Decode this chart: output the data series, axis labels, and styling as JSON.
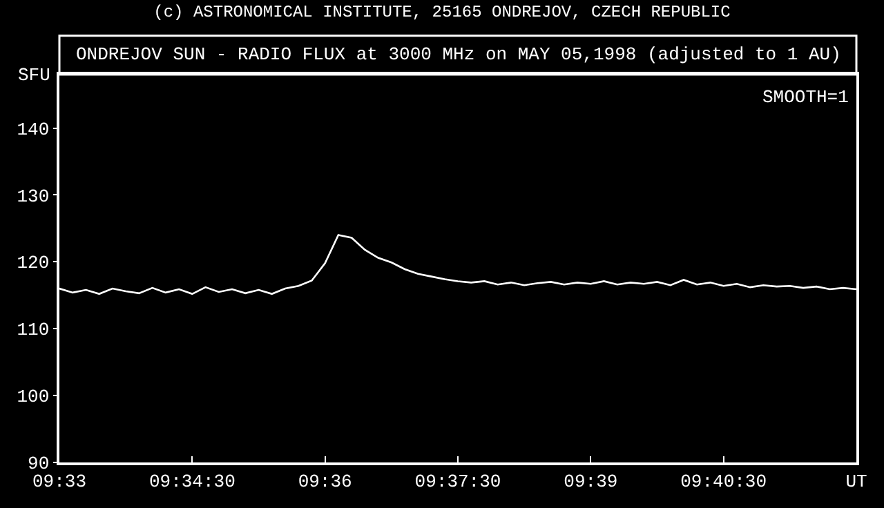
{
  "chart_data": {
    "type": "line",
    "title": "(c) ASTRONOMICAL INSTITUTE, 25165 ONDREJOV, CZECH REPUBLIC",
    "subtitle": "ONDREJOV SUN - RADIO FLUX at 3000 MHz on MAY 05,1998 (adjusted to 1 AU)",
    "ylabel": "SFU",
    "annotations": [
      "SMOOTH=1"
    ],
    "x": [
      9.55,
      9.5525,
      9.555,
      9.5575,
      9.56,
      9.5625,
      9.565,
      9.5675,
      9.57,
      9.5725,
      9.575,
      9.5775,
      9.58,
      9.5825,
      9.585,
      9.5875,
      9.59,
      9.5925,
      9.595,
      9.5975,
      9.6,
      9.6025,
      9.605,
      9.6075,
      9.61,
      9.6125,
      9.615,
      9.6175,
      9.62,
      9.6225,
      9.625,
      9.6275,
      9.63,
      9.6325,
      9.635,
      9.6375,
      9.64,
      9.6425,
      9.645,
      9.6475,
      9.65,
      9.6525,
      9.655,
      9.6575,
      9.66,
      9.6625,
      9.665,
      9.6675,
      9.67,
      9.6725,
      9.675,
      9.6775,
      9.68,
      9.6825,
      9.685,
      9.6875,
      9.69,
      9.6925,
      9.695,
      9.6975,
      9.7
    ],
    "series": [
      {
        "color": "#ffffff",
        "values": [
          116.0,
          115.4,
          115.8,
          115.2,
          116.0,
          115.6,
          115.3,
          116.1,
          115.4,
          115.9,
          115.2,
          116.2,
          115.5,
          115.9,
          115.3,
          115.8,
          115.2,
          116.0,
          116.4,
          117.2,
          119.8,
          124.0,
          123.6,
          121.8,
          120.6,
          119.9,
          118.9,
          118.2,
          117.8,
          117.4,
          117.1,
          116.9,
          117.1,
          116.6,
          116.9,
          116.5,
          116.8,
          117.0,
          116.6,
          116.9,
          116.7,
          117.1,
          116.6,
          116.9,
          116.7,
          117.0,
          116.5,
          117.3,
          116.6,
          116.9,
          116.4,
          116.7,
          116.2,
          116.5,
          116.3,
          116.4,
          116.1,
          116.3,
          115.9,
          116.1,
          115.9
        ]
      }
    ],
    "xlim": [
      9.55,
      9.7
    ],
    "xticks": [
      {
        "value": 9.55,
        "label": "09:33"
      },
      {
        "value": 9.575,
        "label": "09:34:30"
      },
      {
        "value": 9.6,
        "label": "09:36"
      },
      {
        "value": 9.625,
        "label": "09:37:30"
      },
      {
        "value": 9.65,
        "label": "09:39"
      },
      {
        "value": 9.675,
        "label": "09:40:30"
      },
      {
        "value": 9.7,
        "label": "UT"
      }
    ],
    "ylim": [
      90,
      148
    ],
    "yticks": [
      90,
      100,
      110,
      120,
      130,
      140
    ],
    "line_style": "solid"
  }
}
